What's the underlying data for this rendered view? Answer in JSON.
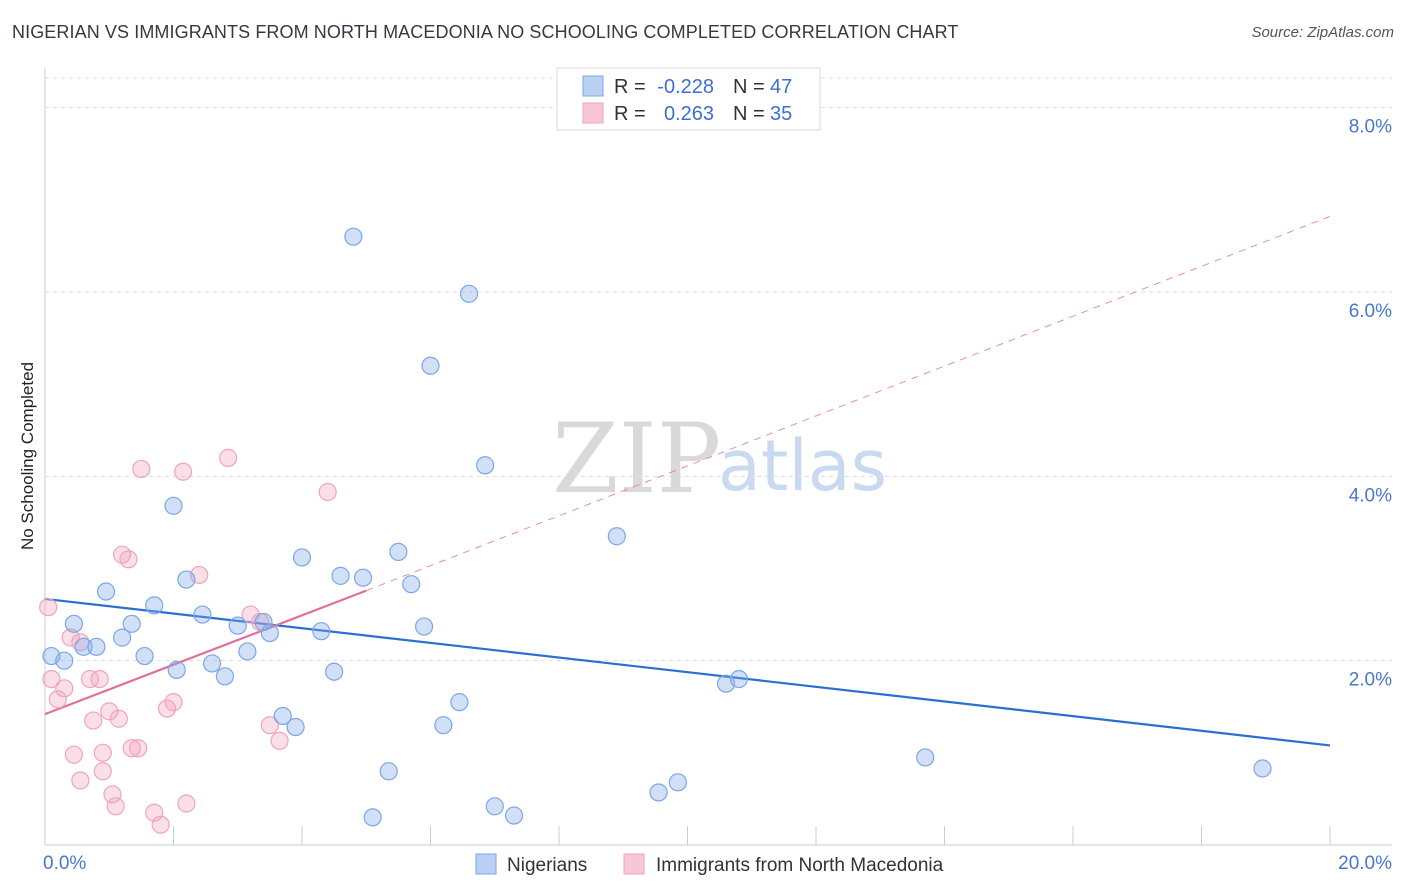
{
  "header": {
    "title": "NIGERIAN VS IMMIGRANTS FROM NORTH MACEDONIA NO SCHOOLING COMPLETED CORRELATION CHART",
    "source": "Source: ZipAtlas.com"
  },
  "watermark": {
    "zip": "ZIP",
    "atlas": "atlas"
  },
  "legend": {
    "rows": [
      {
        "r_label": "R =",
        "r_value": "-0.228",
        "n_label": "N =",
        "n_value": "47"
      },
      {
        "r_label": "R =",
        "r_value": "0.263",
        "n_label": "N =",
        "n_value": "35"
      }
    ]
  },
  "bottom_legend": {
    "series1": "Nigerians",
    "series2": "Immigrants from North Macedonia"
  },
  "chart_data": {
    "type": "scatter",
    "title": "NIGERIAN VS IMMIGRANTS FROM NORTH MACEDONIA NO SCHOOLING COMPLETED CORRELATION CHART",
    "xlabel": "",
    "ylabel": "No Schooling Completed",
    "xlim": [
      0,
      20
    ],
    "ylim": [
      0,
      8.3
    ],
    "x_tick_labels": [
      "0.0%",
      "20.0%"
    ],
    "y_ticks": [
      {
        "value": 2,
        "label": "2.0%"
      },
      {
        "value": 4,
        "label": "4.0%"
      },
      {
        "value": 6,
        "label": "6.0%"
      },
      {
        "value": 8,
        "label": "8.0%"
      }
    ],
    "colors": {
      "blue": "#7ba7e8",
      "blue_line": "#2a6fd2",
      "pink": "#f2a3bd",
      "pink_line": "#e2709a"
    },
    "series": [
      {
        "name": "Nigerians",
        "trend": {
          "x0": 0,
          "y0": 2.67,
          "x1": 20,
          "y1": 1.08
        },
        "points": [
          [
            0.1,
            2.05
          ],
          [
            0.3,
            2.0
          ],
          [
            0.45,
            2.4
          ],
          [
            0.6,
            2.15
          ],
          [
            0.8,
            2.15
          ],
          [
            0.95,
            2.75
          ],
          [
            1.2,
            2.25
          ],
          [
            1.35,
            2.4
          ],
          [
            1.55,
            2.05
          ],
          [
            1.7,
            2.6
          ],
          [
            2.0,
            3.68
          ],
          [
            2.05,
            1.9
          ],
          [
            2.2,
            2.88
          ],
          [
            2.45,
            2.5
          ],
          [
            2.6,
            1.97
          ],
          [
            2.8,
            1.83
          ],
          [
            3.0,
            2.38
          ],
          [
            3.15,
            2.1
          ],
          [
            3.4,
            2.42
          ],
          [
            3.5,
            2.3
          ],
          [
            3.7,
            1.4
          ],
          [
            3.9,
            1.28
          ],
          [
            4.0,
            3.12
          ],
          [
            4.3,
            2.32
          ],
          [
            4.5,
            1.88
          ],
          [
            4.6,
            2.92
          ],
          [
            4.8,
            6.6
          ],
          [
            4.95,
            2.9
          ],
          [
            5.1,
            0.3
          ],
          [
            5.35,
            0.8
          ],
          [
            5.5,
            3.18
          ],
          [
            5.7,
            2.83
          ],
          [
            5.9,
            2.37
          ],
          [
            6.0,
            5.2
          ],
          [
            6.2,
            1.3
          ],
          [
            6.45,
            1.55
          ],
          [
            6.6,
            5.98
          ],
          [
            6.85,
            4.12
          ],
          [
            7.0,
            0.42
          ],
          [
            7.3,
            0.32
          ],
          [
            8.9,
            3.35
          ],
          [
            9.55,
            0.57
          ],
          [
            9.85,
            0.68
          ],
          [
            10.6,
            1.75
          ],
          [
            10.8,
            1.8
          ],
          [
            13.7,
            0.95
          ],
          [
            18.95,
            0.83
          ]
        ]
      },
      {
        "name": "Immigrants from North Macedonia",
        "trend": {
          "x0": 0,
          "y0": 1.42,
          "x1": 5,
          "y1": 2.76
        },
        "trend_ext": {
          "x0": 5,
          "y0": 2.76,
          "x1": 20,
          "y1": 6.82
        },
        "points": [
          [
            0.05,
            2.58
          ],
          [
            0.1,
            1.8
          ],
          [
            0.2,
            1.58
          ],
          [
            0.3,
            1.7
          ],
          [
            0.4,
            2.25
          ],
          [
            0.45,
            0.98
          ],
          [
            0.55,
            2.2
          ],
          [
            0.55,
            0.7
          ],
          [
            0.7,
            1.8
          ],
          [
            0.75,
            1.35
          ],
          [
            0.85,
            1.8
          ],
          [
            0.9,
            0.8
          ],
          [
            0.9,
            1.0
          ],
          [
            1.0,
            1.45
          ],
          [
            1.05,
            0.55
          ],
          [
            1.1,
            0.42
          ],
          [
            1.15,
            1.37
          ],
          [
            1.2,
            3.15
          ],
          [
            1.3,
            3.1
          ],
          [
            1.35,
            1.05
          ],
          [
            1.45,
            1.05
          ],
          [
            1.5,
            4.08
          ],
          [
            1.7,
            0.35
          ],
          [
            1.8,
            0.22
          ],
          [
            1.9,
            1.48
          ],
          [
            2.0,
            1.55
          ],
          [
            2.15,
            4.05
          ],
          [
            2.2,
            0.45
          ],
          [
            2.4,
            2.93
          ],
          [
            2.85,
            4.2
          ],
          [
            3.2,
            2.5
          ],
          [
            3.35,
            2.42
          ],
          [
            3.5,
            1.3
          ],
          [
            3.65,
            1.13
          ],
          [
            4.4,
            3.83
          ]
        ]
      }
    ]
  }
}
